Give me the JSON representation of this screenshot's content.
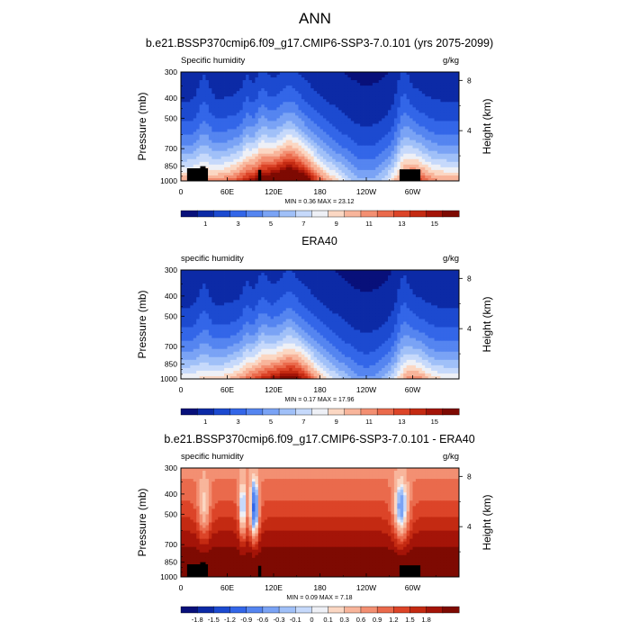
{
  "figure": {
    "title": "ANN"
  },
  "chart_data": [
    {
      "type": "heatmap",
      "title": "b.e21.BSSP370cmip6.f09_g17.CMIP6-SSP3-7.0.101 (yrs 2075-2099)",
      "left_label": "Specific humidity",
      "right_label": "g/kg",
      "xlabel": "",
      "ylabel": "Pressure (mb)",
      "y2label": "Height (km)",
      "x_ticks": [
        "0",
        "60E",
        "120E",
        "180",
        "120W",
        "60W"
      ],
      "x_tick_lon": [
        0,
        60,
        120,
        180,
        240,
        300
      ],
      "y_ticks": [
        300,
        400,
        500,
        700,
        850,
        1000
      ],
      "y2_ticks": [
        8,
        4
      ],
      "ylim": [
        1000,
        300
      ],
      "xlim": [
        0,
        360
      ],
      "min": 0.36,
      "max": 23.12,
      "min_label": "MIN =",
      "min_value": "0.36",
      "max_label": "MAX =",
      "max_value": "23.12",
      "colorbar_labels": [
        "1",
        "3",
        "5",
        "7",
        "9",
        "11",
        "13",
        "15"
      ],
      "colorbar_levels": [
        0,
        1,
        2,
        3,
        4,
        5,
        6,
        7,
        8,
        9,
        10,
        11,
        12,
        13,
        14,
        15,
        16
      ],
      "colors": [
        "#08107a",
        "#0c2aa6",
        "#1c4ad0",
        "#3366e8",
        "#5585f0",
        "#7aa3f5",
        "#a0c0f8",
        "#c6d9fb",
        "#eef0f6",
        "#fbd7c3",
        "#f8b59b",
        "#f38f72",
        "#ea6a4c",
        "#dc4428",
        "#c42a12",
        "#a41408",
        "#7e0a02"
      ]
    },
    {
      "type": "heatmap",
      "title": "ERA40",
      "left_label": "specific humidity",
      "right_label": "g/kg",
      "xlabel": "",
      "ylabel": "Pressure (mb)",
      "y2label": "Height (km)",
      "x_ticks": [
        "0",
        "60E",
        "120E",
        "180",
        "120W",
        "60W"
      ],
      "x_tick_lon": [
        0,
        60,
        120,
        180,
        240,
        300
      ],
      "y_ticks": [
        300,
        400,
        500,
        700,
        850,
        1000
      ],
      "y2_ticks": [
        8,
        4
      ],
      "ylim": [
        1000,
        300
      ],
      "xlim": [
        0,
        360
      ],
      "min": 0.17,
      "max": 17.96,
      "min_label": "MIN =",
      "min_value": "0.17",
      "max_label": "MAX =",
      "max_value": "17.96",
      "colorbar_labels": [
        "1",
        "3",
        "5",
        "7",
        "9",
        "11",
        "13",
        "15"
      ],
      "colorbar_levels": [
        0,
        1,
        2,
        3,
        4,
        5,
        6,
        7,
        8,
        9,
        10,
        11,
        12,
        13,
        14,
        15,
        16
      ],
      "colors": [
        "#08107a",
        "#0c2aa6",
        "#1c4ad0",
        "#3366e8",
        "#5585f0",
        "#7aa3f5",
        "#a0c0f8",
        "#c6d9fb",
        "#eef0f6",
        "#fbd7c3",
        "#f8b59b",
        "#f38f72",
        "#ea6a4c",
        "#dc4428",
        "#c42a12",
        "#a41408",
        "#7e0a02"
      ]
    },
    {
      "type": "heatmap",
      "title": "b.e21.BSSP370cmip6.f09_g17.CMIP6-SSP3-7.0.101 - ERA40",
      "left_label": "specific humidity",
      "right_label": "g/kg",
      "xlabel": "",
      "ylabel": "Pressure (mb)",
      "y2label": "Height (km)",
      "x_ticks": [
        "0",
        "60E",
        "120E",
        "180",
        "120W",
        "60W"
      ],
      "x_tick_lon": [
        0,
        60,
        120,
        180,
        240,
        300
      ],
      "y_ticks": [
        300,
        400,
        500,
        700,
        850,
        1000
      ],
      "y2_ticks": [
        8,
        4
      ],
      "ylim": [
        1000,
        300
      ],
      "xlim": [
        0,
        360
      ],
      "min": 0.09,
      "max": 7.18,
      "min_label": "MIN =",
      "min_value": "0.09",
      "max_label": "MAX =",
      "max_value": "7.18",
      "colorbar_labels": [
        "-1.8",
        "-1.5",
        "-1.2",
        "-0.9",
        "-0.6",
        "-0.3",
        "-0.1",
        "0",
        "0.1",
        "0.3",
        "0.6",
        "0.9",
        "1.2",
        "1.5",
        "1.8"
      ],
      "colorbar_levels": [
        -2,
        -1.8,
        -1.5,
        -1.2,
        -0.9,
        -0.6,
        -0.3,
        -0.1,
        0,
        0.1,
        0.3,
        0.6,
        0.9,
        1.2,
        1.5,
        1.8,
        2.2
      ],
      "colors": [
        "#08107a",
        "#0c2aa6",
        "#1c4ad0",
        "#3366e8",
        "#5585f0",
        "#7aa3f5",
        "#a0c0f8",
        "#c6d9fb",
        "#eef0f6",
        "#fbd7c3",
        "#f8b59b",
        "#f38f72",
        "#ea6a4c",
        "#dc4428",
        "#c42a12",
        "#a41408",
        "#7e0a02"
      ]
    }
  ]
}
